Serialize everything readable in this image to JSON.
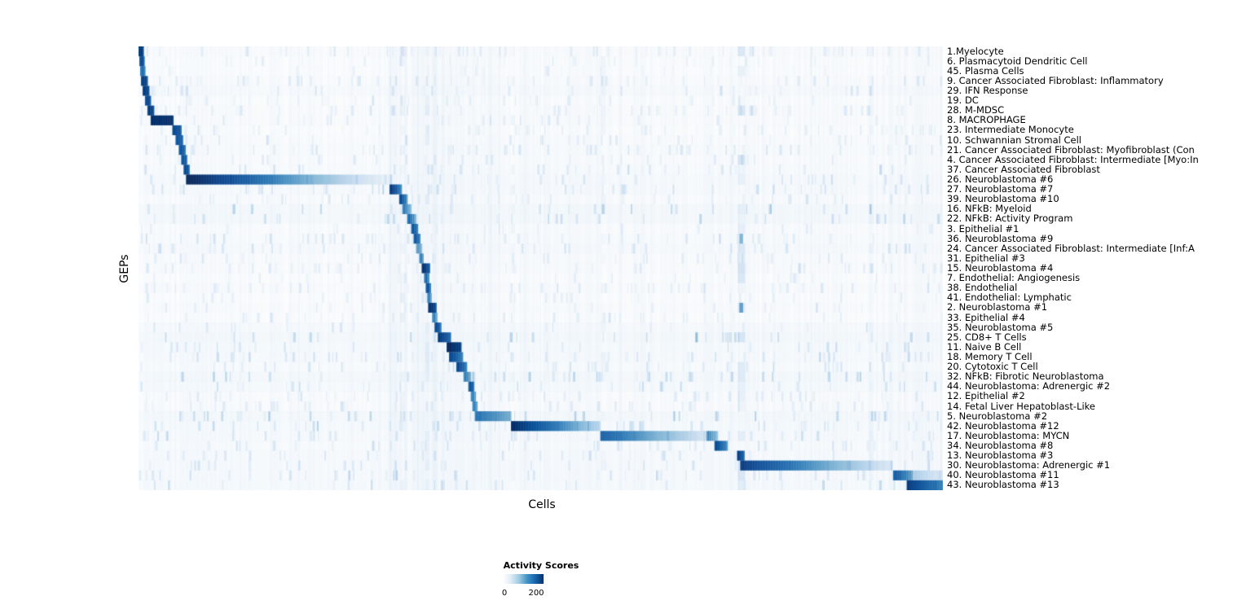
{
  "chart_data": {
    "type": "heatmap",
    "title": "",
    "xlabel": "Cells",
    "ylabel": "GEPs",
    "legend": {
      "title": "Activity Scores",
      "ticks": [
        "0",
        "200"
      ],
      "tick_positions": [
        0.03,
        0.82
      ],
      "position": "bottom-center"
    },
    "value_range": [
      0,
      200
    ],
    "colorscale": [
      "#ffffff",
      "#deebf7",
      "#9ecae1",
      "#4292c6",
      "#1664ab",
      "#08306b"
    ],
    "grid": false,
    "column_bands": [
      [
        0.0,
        0.06,
        0.01
      ],
      [
        0.06,
        0.31,
        0.012
      ],
      [
        0.31,
        0.42,
        0.03
      ],
      [
        0.42,
        0.575,
        0.018
      ],
      [
        0.575,
        0.748,
        0.012
      ],
      [
        0.748,
        0.937,
        0.012
      ],
      [
        0.937,
        1.0,
        0.02
      ]
    ],
    "column_stripes": [
      [
        0.745,
        0.754,
        0.12
      ],
      [
        0.325,
        0.331,
        0.06
      ],
      [
        0.356,
        0.362,
        0.06
      ],
      [
        0.575,
        0.581,
        0.05
      ],
      [
        0.908,
        0.914,
        0.04
      ],
      [
        0.463,
        0.468,
        0.04
      ]
    ],
    "rows": [
      {
        "label": "1.Myelocyte",
        "tint": 0.02,
        "segments": [
          [
            0.0,
            0.006,
            0.92,
            0.85
          ]
        ]
      },
      {
        "label": "6. Plasmacytoid Dendritic Cell",
        "tint": 0.015,
        "segments": [
          [
            0.001,
            0.007,
            0.85,
            0.75
          ]
        ]
      },
      {
        "label": "45. Plasma Cells",
        "tint": 0.01,
        "segments": [
          [
            0.002,
            0.008,
            0.7,
            0.6
          ]
        ]
      },
      {
        "label": "9. Cancer Associated Fibroblast: Inflammatory",
        "tint": 0.02,
        "segments": [
          [
            0.003,
            0.011,
            0.9,
            0.8
          ]
        ]
      },
      {
        "label": "29. IFN Response",
        "tint": 0.03,
        "segments": [
          [
            0.005,
            0.013,
            0.9,
            0.8
          ]
        ]
      },
      {
        "label": "19. DC",
        "tint": 0.015,
        "segments": [
          [
            0.008,
            0.015,
            0.85,
            0.75
          ]
        ]
      },
      {
        "label": "28. M-MDSC",
        "tint": 0.02,
        "segments": [
          [
            0.011,
            0.019,
            0.9,
            0.8
          ]
        ]
      },
      {
        "label": "8. MACROPHAGE",
        "tint": 0.02,
        "segments": [
          [
            0.015,
            0.043,
            0.96,
            0.9
          ]
        ]
      },
      {
        "label": "23. Intermediate Monocyte",
        "tint": 0.015,
        "segments": [
          [
            0.042,
            0.053,
            0.85,
            0.7
          ]
        ]
      },
      {
        "label": "10. Schwannian Stromal Cell",
        "tint": 0.02,
        "segments": [
          [
            0.046,
            0.055,
            0.8,
            0.65
          ]
        ]
      },
      {
        "label": "21. Cancer Associated Fibroblast: Myofibroblast (Con",
        "tint": 0.025,
        "segments": [
          [
            0.05,
            0.058,
            0.8,
            0.65
          ]
        ]
      },
      {
        "label": "4. Cancer Associated Fibroblast: Intermediate [Myo:In",
        "tint": 0.02,
        "segments": [
          [
            0.053,
            0.06,
            0.8,
            0.65
          ]
        ]
      },
      {
        "label": "37. Cancer Associated Fibroblast",
        "tint": 0.025,
        "segments": [
          [
            0.056,
            0.063,
            0.85,
            0.7
          ]
        ]
      },
      {
        "label": "26. Neuroblastoma #6",
        "tint": 0.03,
        "segments": [
          [
            0.059,
            0.315,
            0.97,
            0.03
          ]
        ]
      },
      {
        "label": "27. Neuroblastoma #7",
        "tint": 0.03,
        "segments": [
          [
            0.312,
            0.327,
            0.9,
            0.5
          ]
        ]
      },
      {
        "label": "39. Neuroblastoma #10",
        "tint": 0.02,
        "segments": [
          [
            0.324,
            0.334,
            0.85,
            0.45
          ]
        ]
      },
      {
        "label": "16. NFkB: Myeloid",
        "tint": 0.045,
        "segments": [
          [
            0.328,
            0.339,
            0.6,
            0.35
          ]
        ]
      },
      {
        "label": "22. NFkB: Activity Program",
        "tint": 0.04,
        "segments": [
          [
            0.334,
            0.344,
            0.7,
            0.4
          ]
        ]
      },
      {
        "label": "3. Epithelial #1",
        "tint": 0.02,
        "segments": [
          [
            0.339,
            0.347,
            0.8,
            0.55
          ]
        ]
      },
      {
        "label": "36. Neuroblastoma #9",
        "tint": 0.025,
        "segments": [
          [
            0.342,
            0.35,
            0.8,
            0.5
          ],
          [
            0.747,
            0.751,
            0.45,
            0.45
          ]
        ]
      },
      {
        "label": "24. Cancer Associated Fibroblast: Intermediate [Inf:A",
        "tint": 0.03,
        "segments": [
          [
            0.345,
            0.352,
            0.5,
            0.3
          ]
        ]
      },
      {
        "label": "31. Epithelial #3",
        "tint": 0.02,
        "segments": [
          [
            0.349,
            0.354,
            0.6,
            0.4
          ]
        ]
      },
      {
        "label": "15. Neuroblastoma #4",
        "tint": 0.02,
        "segments": [
          [
            0.352,
            0.362,
            0.95,
            0.65
          ]
        ]
      },
      {
        "label": "7. Endothelial: Angiogenesis",
        "tint": 0.015,
        "segments": [
          [
            0.355,
            0.361,
            0.7,
            0.5
          ]
        ]
      },
      {
        "label": "38. Endothelial",
        "tint": 0.02,
        "segments": [
          [
            0.357,
            0.363,
            0.8,
            0.6
          ]
        ]
      },
      {
        "label": "41. Endothelial: Lymphatic",
        "tint": 0.015,
        "segments": [
          [
            0.359,
            0.364,
            0.6,
            0.4
          ]
        ]
      },
      {
        "label": "2. Neuroblastoma #1",
        "tint": 0.02,
        "segments": [
          [
            0.36,
            0.37,
            0.95,
            0.75
          ],
          [
            0.747,
            0.751,
            0.5,
            0.5
          ]
        ]
      },
      {
        "label": "33. Epithelial #4",
        "tint": 0.015,
        "segments": [
          [
            0.365,
            0.371,
            0.6,
            0.4
          ]
        ]
      },
      {
        "label": "35. Neuroblastoma #5",
        "tint": 0.03,
        "segments": [
          [
            0.368,
            0.376,
            0.85,
            0.6
          ]
        ]
      },
      {
        "label": "25. CD8+ T Cells",
        "tint": 0.045,
        "segments": [
          [
            0.372,
            0.388,
            0.9,
            0.65
          ]
        ]
      },
      {
        "label": "11. Naive B Cell",
        "tint": 0.035,
        "segments": [
          [
            0.383,
            0.401,
            0.98,
            0.85
          ]
        ]
      },
      {
        "label": "18. Memory T Cell",
        "tint": 0.03,
        "segments": [
          [
            0.386,
            0.403,
            0.85,
            0.55
          ]
        ]
      },
      {
        "label": "20. Cytotoxic T Cell",
        "tint": 0.025,
        "segments": [
          [
            0.395,
            0.408,
            0.85,
            0.55
          ]
        ]
      },
      {
        "label": "32. NFkB: Fibrotic Neuroblastoma",
        "tint": 0.045,
        "segments": [
          [
            0.404,
            0.413,
            0.6,
            0.4
          ]
        ]
      },
      {
        "label": "44. Neuroblastoma: Adrenergic #2",
        "tint": 0.035,
        "segments": [
          [
            0.41,
            0.417,
            0.8,
            0.55
          ]
        ]
      },
      {
        "label": "12. Epithelial #2",
        "tint": 0.02,
        "segments": [
          [
            0.413,
            0.419,
            0.6,
            0.45
          ]
        ]
      },
      {
        "label": "14. Fetal Liver Hepatoblast-Like",
        "tint": 0.02,
        "segments": [
          [
            0.415,
            0.421,
            0.6,
            0.45
          ]
        ]
      },
      {
        "label": "5. Neuroblastoma #2",
        "tint": 0.04,
        "segments": [
          [
            0.418,
            0.463,
            0.62,
            0.42
          ]
        ]
      },
      {
        "label": "42. Neuroblastoma #12",
        "tint": 0.035,
        "segments": [
          [
            0.463,
            0.574,
            0.97,
            0.22
          ]
        ]
      },
      {
        "label": "17. Neuroblastoma: MYCN",
        "tint": 0.03,
        "segments": [
          [
            0.574,
            0.706,
            0.7,
            0.15
          ],
          [
            0.706,
            0.72,
            0.55,
            0.35
          ]
        ]
      },
      {
        "label": "34. Neuroblastoma #8",
        "tint": 0.025,
        "segments": [
          [
            0.716,
            0.732,
            0.85,
            0.5
          ]
        ]
      },
      {
        "label": "13. Neuroblastoma #3",
        "tint": 0.03,
        "segments": [
          [
            0.744,
            0.753,
            0.88,
            0.65
          ]
        ]
      },
      {
        "label": "30. Neuroblastoma: Adrenergic #1",
        "tint": 0.03,
        "segments": [
          [
            0.748,
            0.937,
            0.85,
            0.12
          ]
        ]
      },
      {
        "label": "40. Neuroblastoma #11",
        "tint": 0.03,
        "segments": [
          [
            0.938,
            0.962,
            0.75,
            0.45
          ],
          [
            0.962,
            1.0,
            0.28,
            0.12
          ]
        ]
      },
      {
        "label": "43. Neuroblastoma #13",
        "tint": 0.035,
        "segments": [
          [
            0.955,
            1.0,
            0.88,
            0.55
          ]
        ]
      }
    ]
  }
}
